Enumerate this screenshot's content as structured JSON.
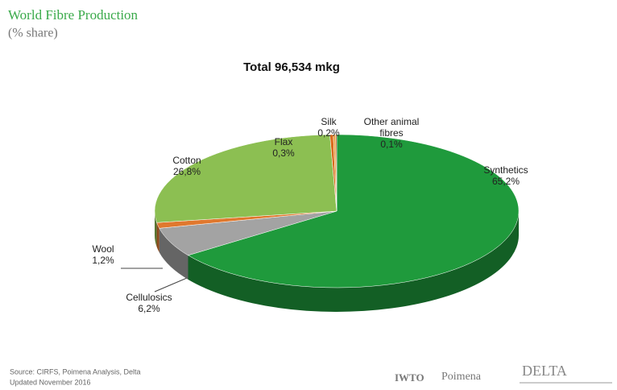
{
  "chart_data": {
    "type": "pie3d",
    "title": "World Fibre Production",
    "subtitle": "(% share)",
    "annotation": "Total 96,534 mkg",
    "categories": [
      "Synthetics",
      "Cellulosics",
      "Wool",
      "Cotton",
      "Flax",
      "Silk",
      "Other animal fibres"
    ],
    "values": [
      65.2,
      6.2,
      1.2,
      26.8,
      0.3,
      0.2,
      0.1
    ],
    "value_labels": [
      "65,2%",
      "6,2%",
      "1,2%",
      "26,8%",
      "0,3%",
      "0,2%",
      "0,1%"
    ],
    "colors": [
      "#1f9a3c",
      "#a3a3a3",
      "#e0782e",
      "#8cbf52",
      "#d9691c",
      "#e8a040",
      "#c0501f"
    ],
    "source": "Source: CIRFS, Poimena Analysis, Delta",
    "updated": "Updated November 2016",
    "logos": [
      "IWTO",
      "Poimena",
      "DELTA"
    ]
  }
}
